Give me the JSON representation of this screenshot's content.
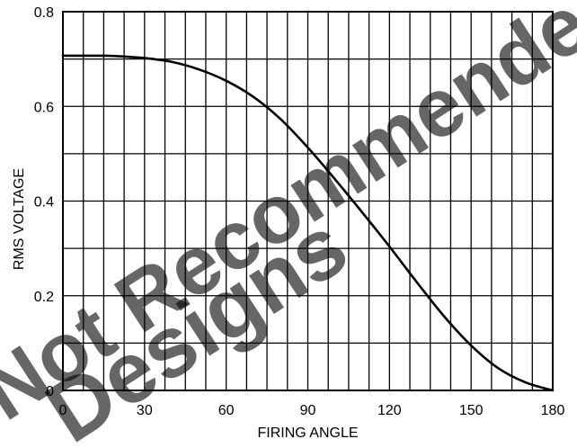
{
  "chart_data": {
    "type": "line",
    "title": "",
    "xlabel": "FIRING ANGLE",
    "ylabel": "RMS VOLTAGE",
    "xlim": [
      0,
      180
    ],
    "ylim": [
      0,
      0.8
    ],
    "x_ticks": [
      0,
      30,
      60,
      90,
      120,
      150,
      180
    ],
    "x_tick_labels": [
      "0",
      "30",
      "60",
      "90",
      "120",
      "150",
      "180"
    ],
    "y_ticks": [
      0,
      0.2,
      0.4,
      0.6,
      0.8
    ],
    "y_tick_labels": [
      "0",
      "0.2",
      "0.4",
      "0.6",
      "0.8"
    ],
    "grid": true,
    "grid_x_step": 7.5,
    "grid_y_step": 0.1,
    "legend": "none",
    "series": [
      {
        "color": "#000000",
        "x": [
          0,
          15,
          20,
          30,
          40,
          50,
          60,
          70,
          80,
          90,
          100,
          110,
          120,
          130,
          140,
          150,
          160,
          170,
          180
        ],
        "y": [
          0.707,
          0.707,
          0.706,
          0.702,
          0.694,
          0.678,
          0.654,
          0.62,
          0.573,
          0.513,
          0.446,
          0.376,
          0.304,
          0.229,
          0.157,
          0.095,
          0.047,
          0.017,
          0.0
        ]
      }
    ]
  },
  "watermark": {
    "line1": "Not Recommended",
    "line2": "Designs",
    "color": "#f2bcbc"
  },
  "colors": {
    "axis": "#000000",
    "grid": "#000000",
    "background": "#ffffff"
  }
}
